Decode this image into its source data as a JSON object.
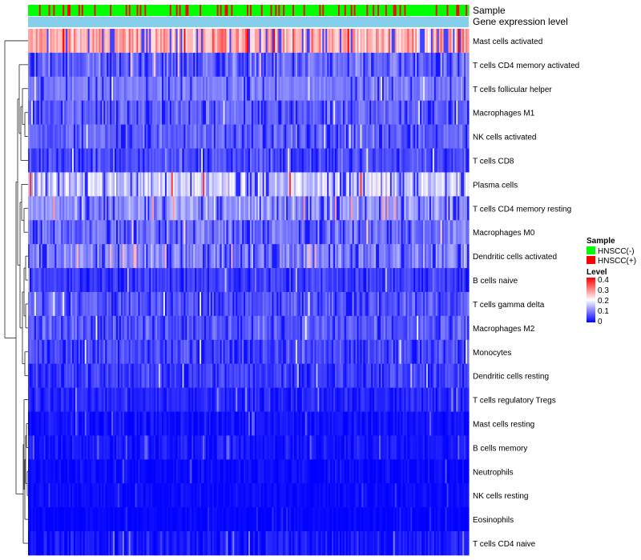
{
  "chart_data": {
    "type": "heatmap",
    "title": "",
    "annotation_tracks": [
      {
        "name": "Sample",
        "type": "categorical"
      },
      {
        "name": "Gene expression level",
        "type": "constant"
      }
    ],
    "annotation_labels": [
      "Sample",
      "Gene expression level"
    ],
    "rows": [
      {
        "label": "Mast cells activated",
        "mean": 0.26,
        "spread": 0.11
      },
      {
        "label": "T cells CD4 memory activated",
        "mean": 0.08,
        "spread": 0.08
      },
      {
        "label": "T cells follicular helper",
        "mean": 0.1,
        "spread": 0.04
      },
      {
        "label": "Macrophages M1",
        "mean": 0.08,
        "spread": 0.05
      },
      {
        "label": "NK cells activated",
        "mean": 0.08,
        "spread": 0.05
      },
      {
        "label": "T cells CD8",
        "mean": 0.06,
        "spread": 0.06
      },
      {
        "label": "Plasma cells",
        "mean": 0.16,
        "spread": 0.1
      },
      {
        "label": "T cells CD4 memory resting",
        "mean": 0.12,
        "spread": 0.08
      },
      {
        "label": "Macrophages M0",
        "mean": 0.09,
        "spread": 0.07
      },
      {
        "label": "Dendritic cells activated",
        "mean": 0.1,
        "spread": 0.08
      },
      {
        "label": "B cells naive",
        "mean": 0.05,
        "spread": 0.05
      },
      {
        "label": "T cells gamma delta",
        "mean": 0.07,
        "spread": 0.06
      },
      {
        "label": "Macrophages M2",
        "mean": 0.07,
        "spread": 0.06
      },
      {
        "label": "Monocytes",
        "mean": 0.06,
        "spread": 0.06
      },
      {
        "label": "Dendritic cells resting",
        "mean": 0.05,
        "spread": 0.05
      },
      {
        "label": "T cells regulatory  Tregs",
        "mean": 0.03,
        "spread": 0.04
      },
      {
        "label": "Mast cells resting",
        "mean": 0.015,
        "spread": 0.03
      },
      {
        "label": "B cells memory",
        "mean": 0.02,
        "spread": 0.03
      },
      {
        "label": "Neutrophils",
        "mean": 0.01,
        "spread": 0.03
      },
      {
        "label": "NK cells resting",
        "mean": 0.01,
        "spread": 0.02
      },
      {
        "label": "Eosinophils",
        "mean": 0.005,
        "spread": 0.015
      },
      {
        "label": "T cells CD4 naive",
        "mean": 0.02,
        "spread": 0.04
      }
    ],
    "n_samples": 280,
    "positive_sample_fraction": 0.18,
    "legend": {
      "position": "right",
      "sample_title": "Sample",
      "sample_entries": [
        {
          "label": "HNSCC(-)",
          "color": "#00ff00"
        },
        {
          "label": "HNSCC(+)",
          "color": "#ff0000"
        }
      ],
      "level_title": "Level",
      "level_ticks": [
        "0.4",
        "0.3",
        "0.2",
        "0.1",
        "0"
      ],
      "level_values": [
        0.4,
        0.3,
        0.2,
        0.1,
        0
      ]
    },
    "color_scale": {
      "min": 0,
      "mid": 0.2,
      "max": 0.4,
      "low": "#0000ff",
      "midcolor": "#ffffff",
      "high": "#ff0000"
    },
    "gene_expression_color": "#87ceeb",
    "dendrogram": "rows clustered (left)"
  }
}
